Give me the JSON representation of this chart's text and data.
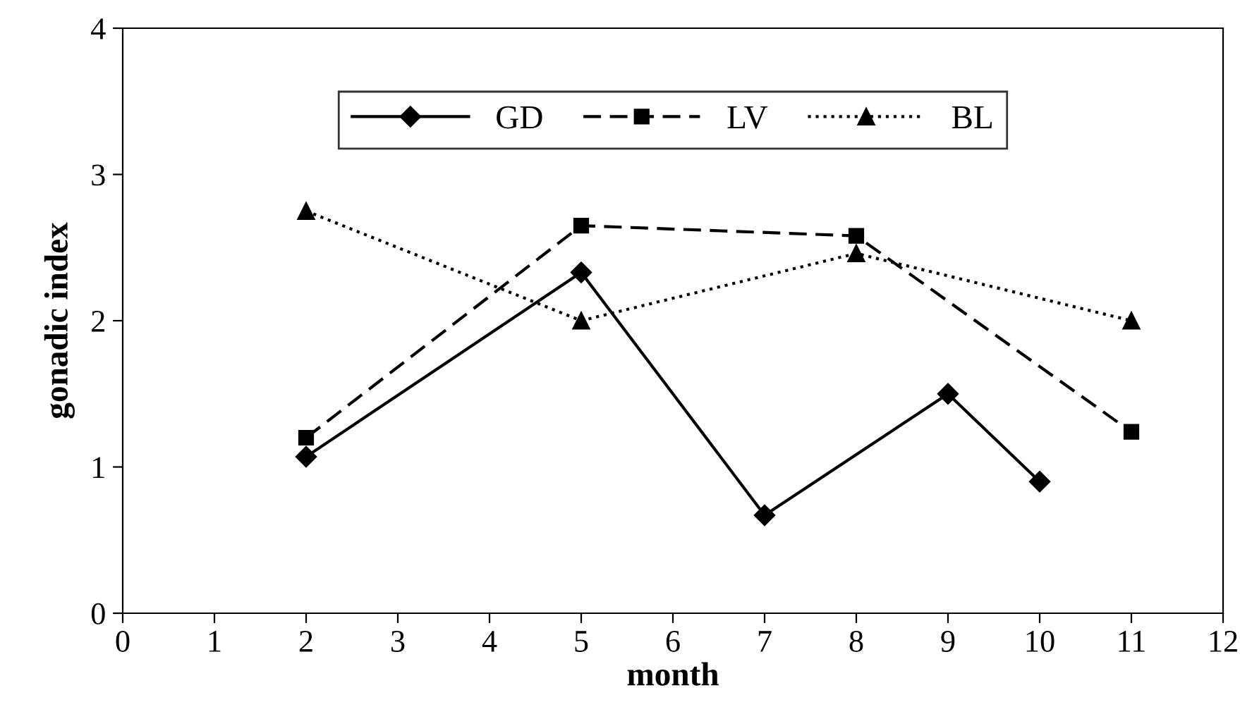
{
  "chart_data": {
    "type": "line",
    "xlabel": "month",
    "ylabel": "gonadic index",
    "series": [
      {
        "name": "GD",
        "color": "#000000",
        "marker": "diamond",
        "line_style": "solid",
        "x": [
          2,
          5,
          7,
          9,
          10
        ],
        "values": [
          1.07,
          2.33,
          0.67,
          1.5,
          0.9
        ]
      },
      {
        "name": "LV",
        "color": "#000000",
        "marker": "square",
        "line_style": "dashed",
        "x": [
          2,
          5,
          8,
          11
        ],
        "values": [
          1.2,
          2.65,
          2.58,
          1.24
        ]
      },
      {
        "name": "BL",
        "color": "#000000",
        "marker": "triangle",
        "line_style": "dotted",
        "x": [
          2,
          5,
          8,
          11
        ],
        "values": [
          2.75,
          2.0,
          2.46,
          2.0
        ]
      }
    ],
    "xlim": [
      0,
      12
    ],
    "xticks": [
      0,
      1,
      2,
      3,
      4,
      5,
      6,
      7,
      8,
      9,
      10,
      11,
      12
    ],
    "ylim": [
      0,
      4
    ],
    "yticks": [
      0,
      1,
      2,
      3,
      4
    ],
    "grid": false,
    "legend": "top"
  }
}
